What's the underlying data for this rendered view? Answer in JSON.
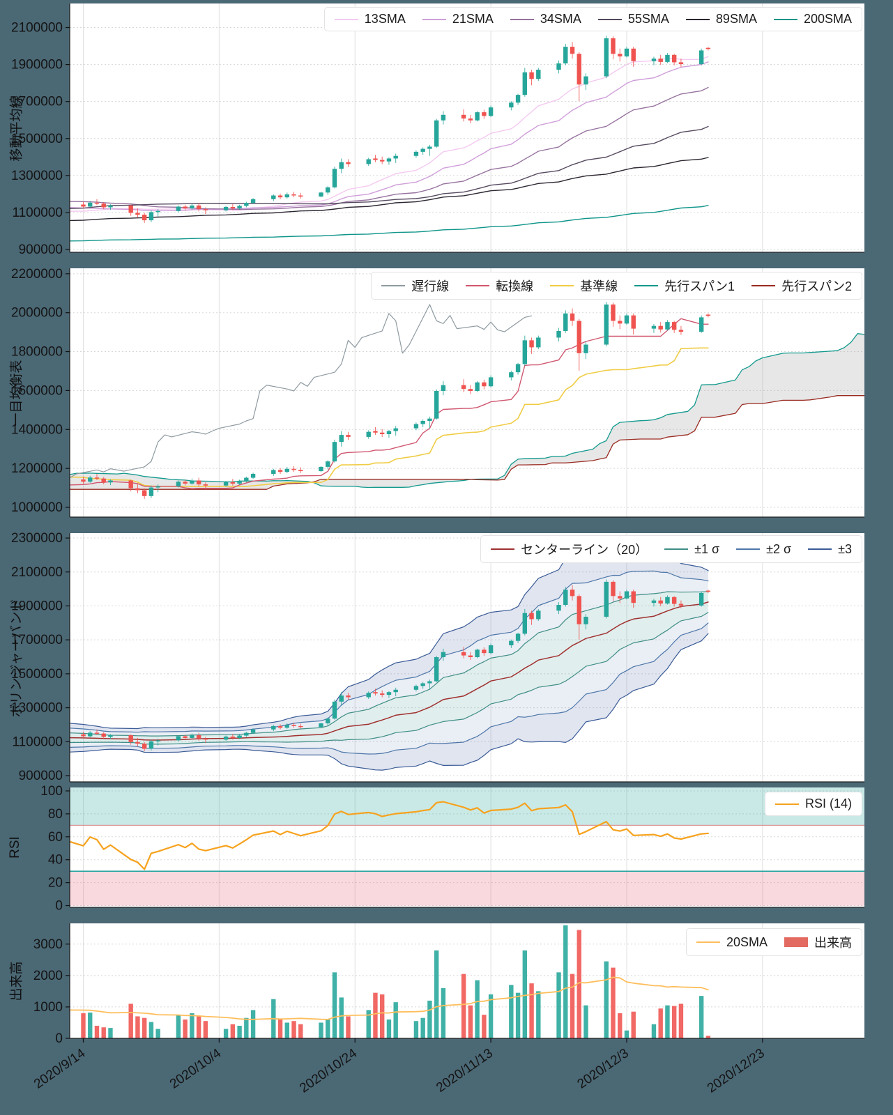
{
  "page": {
    "background": "#4b6875",
    "plot_background": "#ffffff",
    "grid_color": "#dcdcdc",
    "axis_color": "#202020",
    "tick_text_color": "#141414"
  },
  "x_axis": {
    "domain": [
      "2020-09-12",
      "2021-01-07"
    ],
    "tick_dates": [
      "2020-09-14",
      "2020-10-04",
      "2020-10-24",
      "2020-11-13",
      "2020-12-03",
      "2020-12-23"
    ],
    "tick_labels": [
      "2020/9/14",
      "2020/10/4",
      "2020/10/24",
      "2020/11/13",
      "2020/12/3",
      "2020/12/23"
    ]
  },
  "panels": [
    {
      "id": "moving-average",
      "y_title": "移動平均線",
      "y_ticks": [
        900000,
        1100000,
        1300000,
        1500000,
        1700000,
        1900000,
        2100000
      ],
      "legend": [
        {
          "label": "13SMA",
          "color": "#f4c9f0"
        },
        {
          "label": "21SMA",
          "color": "#cf9ed9"
        },
        {
          "label": "34SMA",
          "color": "#97729f"
        },
        {
          "label": "55SMA",
          "color": "#564a60"
        },
        {
          "label": "89SMA",
          "color": "#2c2631"
        },
        {
          "label": "200SMA",
          "color": "#0d9488"
        }
      ]
    },
    {
      "id": "ichimoku",
      "y_title": "一目均衡表",
      "y_ticks": [
        1000000,
        1200000,
        1400000,
        1600000,
        1800000,
        2000000,
        2200000
      ],
      "cloud_fill": "#9e9e9e",
      "legend": [
        {
          "label": "遅行線",
          "color": "#8e9aa0"
        },
        {
          "label": "転換線",
          "color": "#d0576f"
        },
        {
          "label": "基準線",
          "color": "#f0cc45"
        },
        {
          "label": "先行スパン1",
          "color": "#11998c"
        },
        {
          "label": "先行スパン2",
          "color": "#9a2b22"
        }
      ]
    },
    {
      "id": "bollinger",
      "y_title": "ボリンジャーバンド",
      "y_ticks": [
        900000,
        1100000,
        1300000,
        1500000,
        1700000,
        1900000,
        2100000,
        2300000
      ],
      "band_fill_blue": "#5570aa",
      "band_fill_teal": "#3c968c",
      "legend": [
        {
          "label": "センターライン（20）",
          "color": "#a03030"
        },
        {
          "label": "±1 σ",
          "color": "#3e8e85"
        },
        {
          "label": "±2 σ",
          "color": "#4d76a8"
        },
        {
          "label": "±3",
          "color": "#3a5a96"
        }
      ]
    },
    {
      "id": "rsi",
      "y_title": "RSI",
      "y_ticks": [
        0,
        20,
        40,
        60,
        80,
        100
      ],
      "overbought_level": 70,
      "oversold_level": 30,
      "overbought_fill": "#26a69a",
      "oversold_fill": "#e8647c",
      "level_70_color": "#d98c8c",
      "level_30_color": "#2aa5a0",
      "legend": [
        {
          "label": "RSI (14)",
          "color": "#f6a21e"
        }
      ]
    },
    {
      "id": "volume",
      "y_title": "出来高",
      "y_ticks": [
        0,
        1000,
        2000,
        3000
      ],
      "legend": [
        {
          "label": "20SMA",
          "color": "#ffbe5c"
        },
        {
          "label": "出来高",
          "color": "#e26a60",
          "swatch": true
        }
      ]
    }
  ],
  "chart_data": {
    "type": "candlestick_multi_panel",
    "candle_up_color": "#26a69a",
    "candle_down_color": "#ef5350",
    "dates": [
      "2020-09-11",
      "2020-09-14",
      "2020-09-15",
      "2020-09-16",
      "2020-09-17",
      "2020-09-18",
      "2020-09-21",
      "2020-09-22",
      "2020-09-23",
      "2020-09-24",
      "2020-09-25",
      "2020-09-28",
      "2020-09-29",
      "2020-09-30",
      "2020-10-01",
      "2020-10-02",
      "2020-10-05",
      "2020-10-06",
      "2020-10-07",
      "2020-10-08",
      "2020-10-09",
      "2020-10-12",
      "2020-10-13",
      "2020-10-14",
      "2020-10-15",
      "2020-10-16",
      "2020-10-19",
      "2020-10-20",
      "2020-10-21",
      "2020-10-22",
      "2020-10-23",
      "2020-10-26",
      "2020-10-27",
      "2020-10-28",
      "2020-10-29",
      "2020-10-30",
      "2020-11-02",
      "2020-11-03",
      "2020-11-04",
      "2020-11-05",
      "2020-11-06",
      "2020-11-09",
      "2020-11-10",
      "2020-11-11",
      "2020-11-12",
      "2020-11-13",
      "2020-11-16",
      "2020-11-17",
      "2020-11-18",
      "2020-11-19",
      "2020-11-20",
      "2020-11-23",
      "2020-11-24",
      "2020-11-25",
      "2020-11-26",
      "2020-11-27",
      "2020-11-30",
      "2020-12-01",
      "2020-12-02",
      "2020-12-03",
      "2020-12-04",
      "2020-12-07",
      "2020-12-08",
      "2020-12-09",
      "2020-12-10",
      "2020-12-11",
      "2020-12-14",
      "2020-12-15"
    ],
    "open": [
      1128000,
      1143000,
      1132000,
      1153000,
      1148000,
      1128000,
      1138000,
      1098000,
      1088000,
      1058000,
      1102000,
      1108000,
      1132000,
      1122000,
      1138000,
      1118000,
      1112000,
      1130000,
      1122000,
      1136000,
      1152000,
      1172000,
      1192000,
      1182000,
      1198000,
      1192000,
      1186000,
      1208000,
      1236000,
      1336000,
      1372000,
      1362000,
      1392000,
      1384000,
      1376000,
      1392000,
      1406000,
      1428000,
      1444000,
      1456000,
      1598000,
      1628000,
      1608000,
      1598000,
      1642000,
      1622000,
      1668000,
      1694000,
      1736000,
      1858000,
      1822000,
      1872000,
      1906000,
      1996000,
      1958000,
      1792000,
      1836000,
      2042000,
      1958000,
      1944000,
      1986000,
      1918000,
      1932000,
      1914000,
      1952000,
      1912000,
      1902000,
      1990000
    ],
    "high": [
      1152000,
      1158000,
      1162000,
      1172000,
      1156000,
      1144000,
      1142000,
      1122000,
      1098000,
      1112000,
      1118000,
      1138000,
      1142000,
      1148000,
      1152000,
      1128000,
      1136000,
      1146000,
      1142000,
      1158000,
      1178000,
      1198000,
      1202000,
      1208000,
      1212000,
      1206000,
      1212000,
      1242000,
      1348000,
      1392000,
      1388000,
      1396000,
      1412000,
      1402000,
      1398000,
      1418000,
      1436000,
      1452000,
      1466000,
      1606000,
      1648000,
      1658000,
      1628000,
      1648000,
      1656000,
      1678000,
      1702000,
      1742000,
      1882000,
      1872000,
      1882000,
      1922000,
      2012000,
      2022000,
      1968000,
      1852000,
      2056000,
      2052000,
      1986000,
      1996000,
      1996000,
      1942000,
      1952000,
      1962000,
      1958000,
      1932000,
      1986000,
      1996000
    ],
    "low": [
      1108000,
      1122000,
      1126000,
      1140000,
      1118000,
      1114000,
      1082000,
      1072000,
      1044000,
      1048000,
      1078000,
      1102000,
      1112000,
      1116000,
      1106000,
      1092000,
      1106000,
      1112000,
      1115000,
      1128000,
      1146000,
      1162000,
      1172000,
      1176000,
      1182000,
      1176000,
      1182000,
      1196000,
      1230000,
      1312000,
      1346000,
      1352000,
      1372000,
      1362000,
      1358000,
      1368000,
      1396000,
      1412000,
      1406000,
      1450000,
      1576000,
      1592000,
      1582000,
      1592000,
      1606000,
      1616000,
      1652000,
      1682000,
      1726000,
      1788000,
      1812000,
      1852000,
      1896000,
      1932000,
      1702000,
      1762000,
      1826000,
      1928000,
      1916000,
      1938000,
      1888000,
      1896000,
      1898000,
      1908000,
      1896000,
      1886000,
      1896000,
      1976000
    ],
    "close": [
      1143000,
      1132000,
      1153000,
      1148000,
      1128000,
      1138000,
      1098000,
      1088000,
      1058000,
      1102000,
      1108000,
      1132000,
      1122000,
      1138000,
      1118000,
      1112000,
      1130000,
      1122000,
      1136000,
      1152000,
      1172000,
      1192000,
      1182000,
      1198000,
      1192000,
      1186000,
      1208000,
      1236000,
      1336000,
      1372000,
      1362000,
      1388000,
      1384000,
      1376000,
      1392000,
      1406000,
      1428000,
      1444000,
      1456000,
      1598000,
      1628000,
      1608000,
      1598000,
      1642000,
      1622000,
      1668000,
      1694000,
      1736000,
      1858000,
      1822000,
      1872000,
      1906000,
      1996000,
      1958000,
      1792000,
      1836000,
      2042000,
      1958000,
      1944000,
      1986000,
      1918000,
      1932000,
      1914000,
      1952000,
      1912000,
      1902000,
      1976000,
      1984000
    ],
    "volume": [
      950,
      800,
      820,
      400,
      350,
      330,
      1100,
      700,
      650,
      520,
      300,
      750,
      600,
      800,
      700,
      550,
      300,
      450,
      400,
      650,
      900,
      1250,
      600,
      500,
      550,
      450,
      500,
      600,
      2100,
      1300,
      700,
      900,
      1450,
      1400,
      600,
      1150,
      550,
      650,
      1200,
      2800,
      1600,
      2050,
      1050,
      1850,
      750,
      1400,
      1700,
      1450,
      2800,
      1750,
      1500,
      2100,
      3600,
      2050,
      3450,
      1050,
      2450,
      2250,
      800,
      250,
      850,
      450,
      950,
      1050,
      1030,
      1100,
      1350,
      80
    ],
    "indicators": {
      "sma_windows": [
        13,
        21,
        34,
        55,
        89,
        200
      ],
      "ichimoku_periods": {
        "tenkan": 9,
        "kijun": 26,
        "senkou_b": 52,
        "shift_days": 26
      },
      "bollinger": {
        "window": 20,
        "sigmas": [
          1,
          2,
          3
        ]
      },
      "rsi_period": 14,
      "volume_sma_window": 20
    },
    "warmup_anchors": [
      [
        -290,
        880000
      ],
      [
        -250,
        945000
      ],
      [
        -200,
        950000
      ],
      [
        -185,
        600000
      ],
      [
        -160,
        730000
      ],
      [
        -130,
        930000
      ],
      [
        -100,
        960000
      ],
      [
        -70,
        950000
      ],
      [
        -52,
        1150000
      ],
      [
        -38,
        1235000
      ],
      [
        -30,
        1205000
      ],
      [
        -20,
        1150000
      ],
      [
        -10,
        1085000
      ],
      [
        -3,
        1105000
      ],
      [
        -1,
        1122000
      ]
    ]
  }
}
